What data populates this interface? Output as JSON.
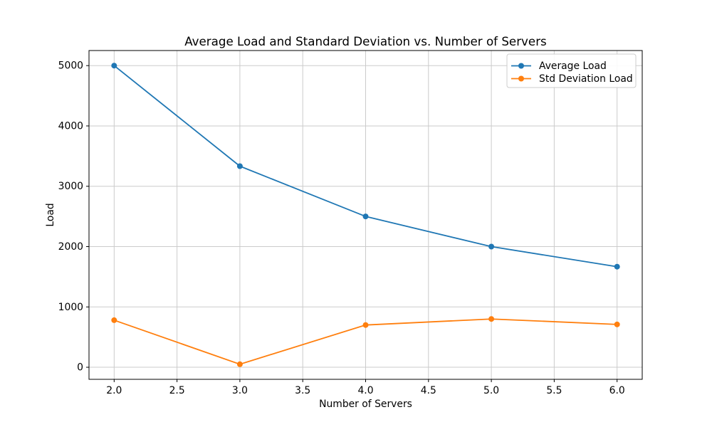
{
  "chart_data": {
    "type": "line",
    "title": "Average Load and Standard Deviation vs. Number of Servers",
    "xlabel": "Number of Servers",
    "ylabel": "Load",
    "x": [
      2,
      3,
      4,
      5,
      6
    ],
    "series": [
      {
        "name": "Average Load",
        "color": "#1f77b4",
        "marker": "circle",
        "values": [
          5000,
          3333,
          2500,
          2000,
          1667
        ]
      },
      {
        "name": "Std Deviation Load",
        "color": "#ff7f0e",
        "marker": "circle",
        "values": [
          780,
          50,
          700,
          800,
          710
        ]
      }
    ],
    "xlim": [
      1.8,
      6.2
    ],
    "ylim": [
      -200,
      5250
    ],
    "xticks": {
      "values": [
        2.0,
        2.5,
        3.0,
        3.5,
        4.0,
        4.5,
        5.0,
        5.5,
        6.0
      ],
      "labels": [
        "2.0",
        "2.5",
        "3.0",
        "3.5",
        "4.0",
        "4.5",
        "5.0",
        "5.5",
        "6.0"
      ]
    },
    "yticks": {
      "values": [
        0,
        1000,
        2000,
        3000,
        4000,
        5000
      ],
      "labels": [
        "0",
        "1000",
        "2000",
        "3000",
        "4000",
        "5000"
      ]
    },
    "grid": true,
    "legend_position": "upper right",
    "colors": {
      "grid": "#cbcbcb",
      "axis": "#000000",
      "background": "#ffffff",
      "legend_border": "#cccccc"
    }
  }
}
